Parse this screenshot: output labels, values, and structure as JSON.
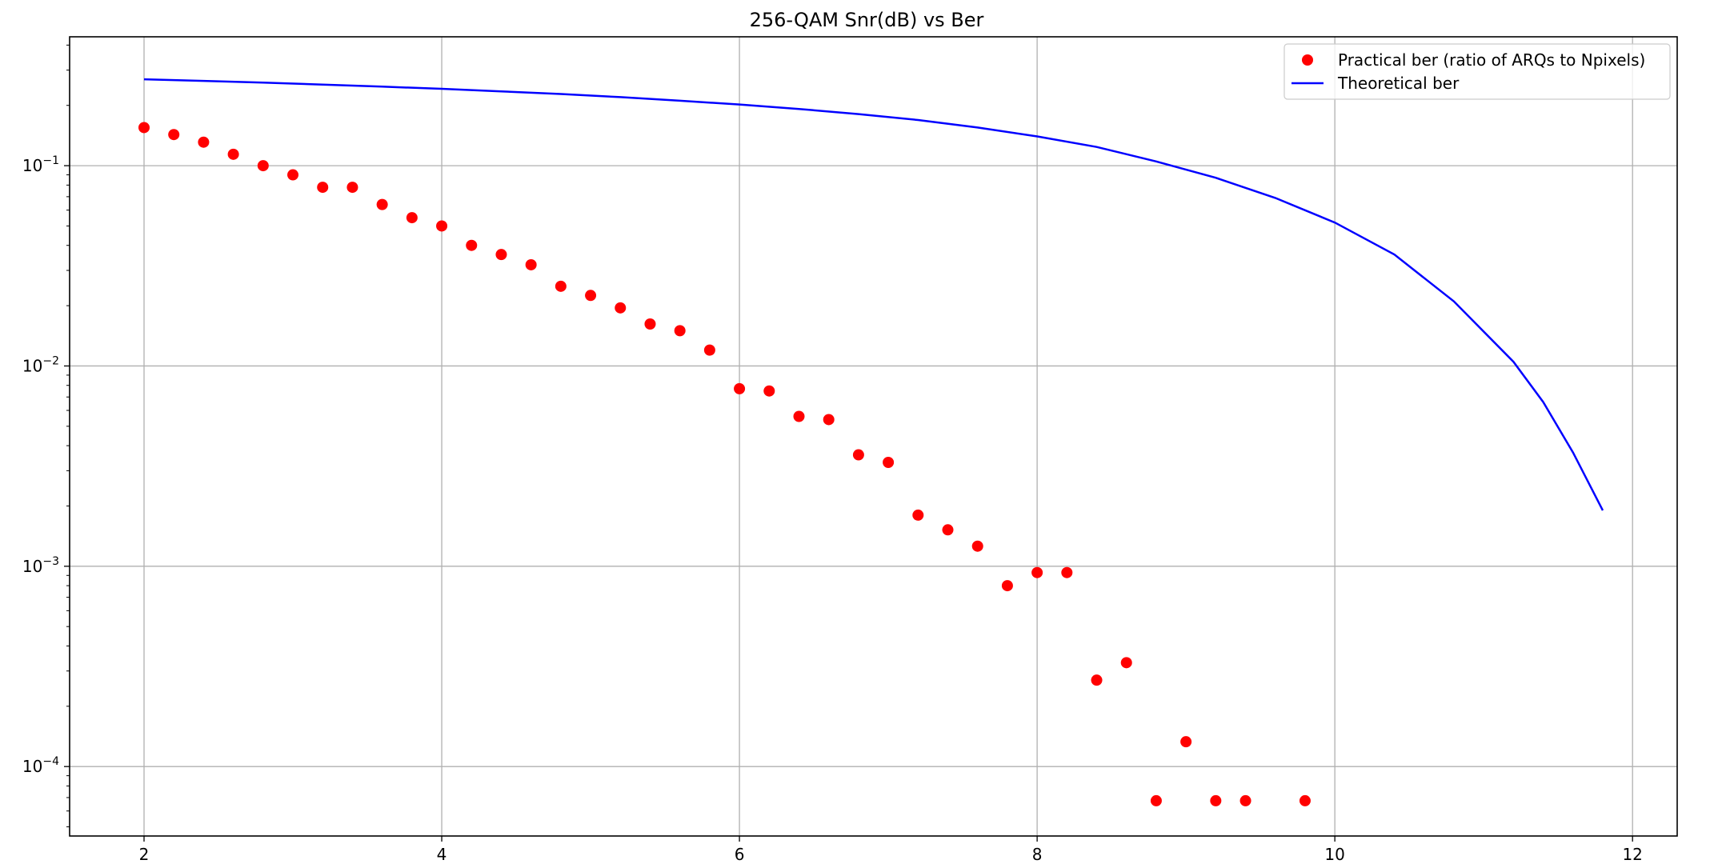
{
  "chart_data": {
    "type": "scatter",
    "title": "256-QAM Snr(dB) vs Ber",
    "xlabel": "",
    "ylabel": "",
    "xlim": [
      1.5,
      12.3
    ],
    "ylim": [
      4.5e-05,
      0.44
    ],
    "yscale": "log",
    "grid": true,
    "legend_position": "top-right",
    "x_ticks": [
      2,
      4,
      6,
      8,
      10,
      12
    ],
    "y_ticks": [
      {
        "value": 0.1,
        "base": "10",
        "exp": "−1"
      },
      {
        "value": 0.01,
        "base": "10",
        "exp": "−2"
      },
      {
        "value": 0.001,
        "base": "10",
        "exp": "−3"
      },
      {
        "value": 0.0001,
        "base": "10",
        "exp": "−4"
      }
    ],
    "series": [
      {
        "name": "Practical ber (ratio of ARQs to Npixels)",
        "kind": "scatter",
        "color": "#ff0000",
        "x": [
          2.0,
          2.2,
          2.4,
          2.6,
          2.8,
          3.0,
          3.2,
          3.4,
          3.6,
          3.8,
          4.0,
          4.2,
          4.4,
          4.6,
          4.8,
          5.0,
          5.2,
          5.4,
          5.6,
          5.8,
          6.0,
          6.2,
          6.4,
          6.6,
          6.8,
          7.0,
          7.2,
          7.4,
          7.6,
          7.8,
          8.0,
          8.2,
          8.4,
          8.6,
          8.8,
          9.0,
          9.2,
          9.4,
          9.8
        ],
        "y": [
          0.155,
          0.143,
          0.131,
          0.114,
          0.1,
          0.09,
          0.078,
          0.078,
          0.064,
          0.055,
          0.05,
          0.04,
          0.036,
          0.032,
          0.025,
          0.0225,
          0.0195,
          0.0162,
          0.015,
          0.012,
          0.0077,
          0.0075,
          0.0056,
          0.0054,
          0.0036,
          0.0033,
          0.0018,
          0.00152,
          0.00126,
          0.0008,
          0.00093,
          0.00093,
          0.00027,
          0.00033,
          6.75e-05,
          0.000133,
          6.75e-05,
          6.75e-05,
          6.75e-05
        ]
      },
      {
        "name": "Theoretical ber",
        "kind": "line",
        "color": "#0000ff",
        "x": [
          2.0,
          2.4,
          2.8,
          3.2,
          3.6,
          4.0,
          4.4,
          4.8,
          5.2,
          5.6,
          6.0,
          6.4,
          6.8,
          7.2,
          7.6,
          8.0,
          8.4,
          8.8,
          9.2,
          9.6,
          10.0,
          10.4,
          10.8,
          11.2,
          11.4,
          11.6,
          11.8
        ],
        "y": [
          0.27,
          0.265,
          0.26,
          0.254,
          0.248,
          0.242,
          0.235,
          0.228,
          0.22,
          0.211,
          0.202,
          0.192,
          0.181,
          0.169,
          0.155,
          0.14,
          0.124,
          0.105,
          0.087,
          0.069,
          0.052,
          0.036,
          0.021,
          0.0105,
          0.0066,
          0.0037,
          0.0019
        ]
      }
    ]
  }
}
